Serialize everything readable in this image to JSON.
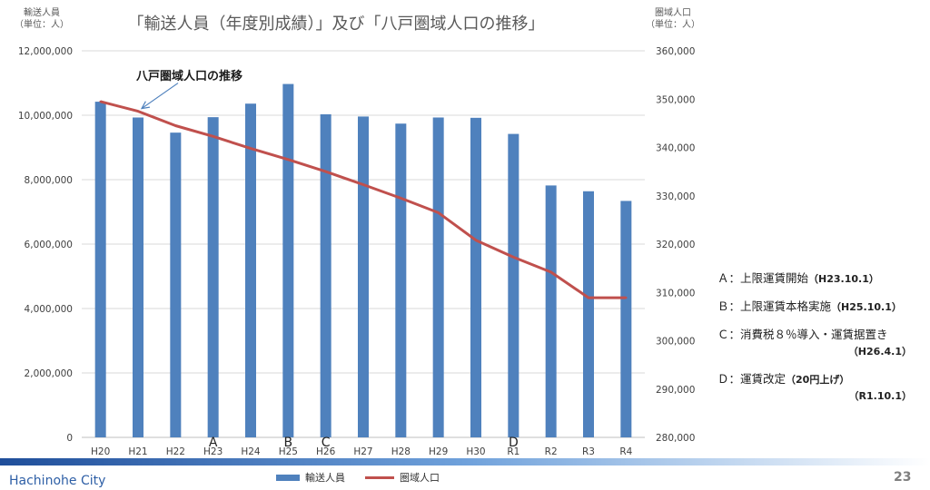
{
  "title": "「輸送人員（年度別成績）」及び「八戸圏域人口の推移」",
  "left_axis_caption": [
    "輸送人員",
    "（単位：人）"
  ],
  "right_axis_caption": [
    "圏域人口",
    "（単位：人）"
  ],
  "colors": {
    "bars": "#4F81BD",
    "line": "#C0504D",
    "arrow": "#4F81BD",
    "grid": "#D9D9D9"
  },
  "chart_data": {
    "type": "bar",
    "categories": [
      "H20",
      "H21",
      "H22",
      "H23",
      "H24",
      "H25",
      "H26",
      "H27",
      "H28",
      "H29",
      "H30",
      "R1",
      "R2",
      "R3",
      "R4"
    ],
    "series": [
      {
        "name": "輸送人員",
        "type": "bar",
        "axis": "left",
        "values": [
          10420000,
          9930000,
          9460000,
          9940000,
          10360000,
          10970000,
          10030000,
          9960000,
          9740000,
          9930000,
          9920000,
          9420000,
          7820000,
          7640000,
          7340000
        ]
      },
      {
        "name": "圏域人口",
        "type": "line",
        "axis": "right",
        "values": [
          349500,
          347500,
          344500,
          342300,
          339800,
          337500,
          335000,
          332300,
          329500,
          326500,
          320800,
          317300,
          314200,
          308900,
          308900
        ]
      }
    ],
    "y_left": {
      "lim": [
        0,
        12000000
      ],
      "ticks": [
        "0",
        "2,000,000",
        "4,000,000",
        "6,000,000",
        "8,000,000",
        "10,000,000",
        "12,000,000"
      ]
    },
    "y_right": {
      "lim": [
        280000,
        360000
      ],
      "ticks": [
        "280,000",
        "290,000",
        "300,000",
        "310,000",
        "320,000",
        "330,000",
        "340,000",
        "350,000",
        "360,000"
      ]
    },
    "grid": true,
    "legend_position": "bottom",
    "markers": [
      {
        "label": "A",
        "category": "H23"
      },
      {
        "label": "B",
        "category": "H25"
      },
      {
        "label": "C",
        "category": "H26"
      },
      {
        "label": "D",
        "category": "R1"
      }
    ],
    "annotation": {
      "text": "八戸圏域人口の推移",
      "target_category": "H21"
    }
  },
  "legend": {
    "bars": "輸送人員",
    "line": "圏域人口"
  },
  "notes": [
    {
      "line": "Ａ：上限運賃開始",
      "date": "（H23.10.1）",
      "sub": ""
    },
    {
      "line": "Ｂ：上限運賃本格実施",
      "date": "（H25.10.1）",
      "sub": ""
    },
    {
      "line": "Ｃ：消費税８％導入・運賃据置き",
      "date": "",
      "sub": "（H26.4.1）"
    },
    {
      "line": "Ｄ：運賃改定",
      "date": "（20円上げ）",
      "sub": "（R1.10.1）"
    }
  ],
  "footer": {
    "city": "Hachinohe  City",
    "page": "23"
  }
}
